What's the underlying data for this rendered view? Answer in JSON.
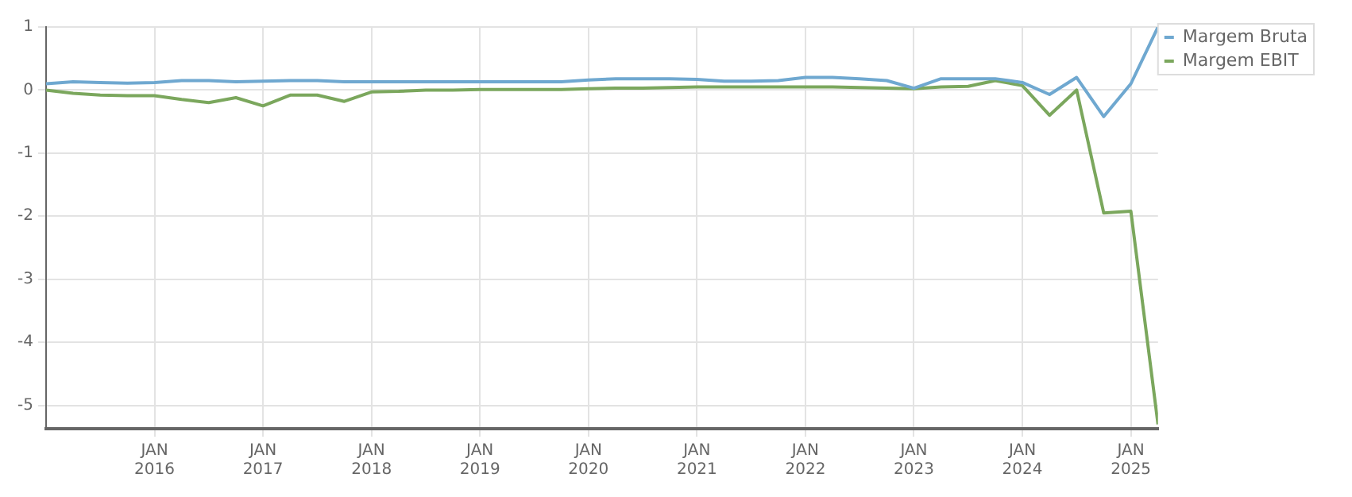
{
  "chart_data": {
    "type": "line",
    "x": [
      "2015-01",
      "2015-04",
      "2015-07",
      "2015-10",
      "2016-01",
      "2016-04",
      "2016-07",
      "2016-10",
      "2017-01",
      "2017-04",
      "2017-07",
      "2017-10",
      "2018-01",
      "2018-04",
      "2018-07",
      "2018-10",
      "2019-01",
      "2019-04",
      "2019-07",
      "2019-10",
      "2020-01",
      "2020-04",
      "2020-07",
      "2020-10",
      "2021-01",
      "2021-04",
      "2021-07",
      "2021-10",
      "2022-01",
      "2022-04",
      "2022-07",
      "2022-10",
      "2023-01",
      "2023-04",
      "2023-07",
      "2023-10",
      "2024-01",
      "2024-04",
      "2024-07",
      "2024-10",
      "2025-01",
      "2025-04"
    ],
    "series": [
      {
        "name": "Margem Bruta",
        "color": "#6fa8d0",
        "values": [
          0.1,
          0.13,
          0.12,
          0.11,
          0.12,
          0.15,
          0.15,
          0.13,
          0.14,
          0.15,
          0.15,
          0.13,
          0.13,
          0.13,
          0.13,
          0.13,
          0.13,
          0.13,
          0.13,
          0.13,
          0.16,
          0.18,
          0.18,
          0.18,
          0.17,
          0.14,
          0.14,
          0.15,
          0.2,
          0.2,
          0.18,
          0.15,
          0.03,
          0.18,
          0.18,
          0.18,
          0.12,
          -0.07,
          0.2,
          -0.42,
          0.1,
          1.0
        ]
      },
      {
        "name": "Margem EBIT",
        "color": "#7ba75d",
        "values": [
          0,
          -0.05,
          -0.08,
          -0.09,
          -0.09,
          -0.15,
          -0.2,
          -0.12,
          -0.25,
          -0.08,
          -0.08,
          -0.18,
          -0.03,
          -0.02,
          0,
          0,
          0.01,
          0.01,
          0.01,
          0.01,
          0.02,
          0.03,
          0.03,
          0.04,
          0.05,
          0.05,
          0.05,
          0.05,
          0.05,
          0.05,
          0.04,
          0.03,
          0.02,
          0.05,
          0.06,
          0.15,
          0.07,
          -0.4,
          0,
          -1.95,
          -1.92,
          -5.3
        ]
      }
    ],
    "xlim": [
      "2015-01",
      "2025-04"
    ],
    "xticks": [
      {
        "value": "2016-01",
        "label": "JAN 2016"
      },
      {
        "value": "2017-01",
        "label": "JAN 2017"
      },
      {
        "value": "2018-01",
        "label": "JAN 2018"
      },
      {
        "value": "2019-01",
        "label": "JAN 2019"
      },
      {
        "value": "2020-01",
        "label": "JAN 2020"
      },
      {
        "value": "2021-01",
        "label": "JAN 2021"
      },
      {
        "value": "2022-01",
        "label": "JAN 2022"
      },
      {
        "value": "2023-01",
        "label": "JAN 2023"
      },
      {
        "value": "2024-01",
        "label": "JAN 2024"
      },
      {
        "value": "2025-01",
        "label": "JAN 2025"
      }
    ],
    "ylim": [
      -5.37,
      1
    ],
    "yticks": [
      -5,
      -4,
      -3,
      -2,
      -1,
      0,
      1
    ],
    "grid": true,
    "legend": "top right",
    "marker": "none",
    "line_style": "solid"
  }
}
